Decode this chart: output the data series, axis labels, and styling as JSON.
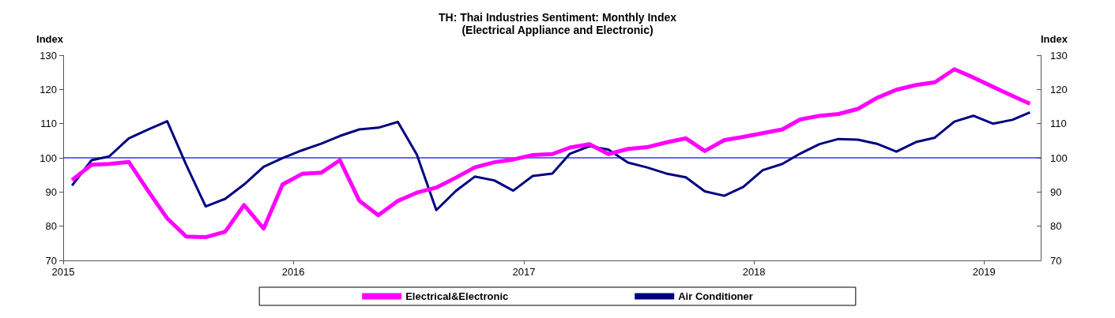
{
  "chart_data": {
    "type": "line",
    "title": "TH: Thai Industries Sentiment: Monthly Index",
    "subtitle": "(Electrical Appliance and Electronic)",
    "ylabel": "Index",
    "y2label": "Index",
    "x": [
      "2015-01-15",
      "2015-02-15",
      "2015-03-15",
      "2015-04-15",
      "2015-05-15",
      "2015-06-15",
      "2015-07-15",
      "2015-08-15",
      "2015-09-15",
      "2015-10-15",
      "2015-11-15",
      "2015-12-15",
      "2016-01-15",
      "2016-02-15",
      "2016-03-15",
      "2016-04-15",
      "2016-05-15",
      "2016-06-15",
      "2016-07-15",
      "2016-08-15",
      "2016-09-15",
      "2016-10-15",
      "2016-11-15",
      "2016-12-15",
      "2017-01-15",
      "2017-02-15",
      "2017-03-15",
      "2017-04-15",
      "2017-05-15",
      "2017-06-15",
      "2017-07-15",
      "2017-08-15",
      "2017-09-15",
      "2017-10-15",
      "2017-11-15",
      "2017-12-15",
      "2018-01-15",
      "2018-02-15",
      "2018-03-15",
      "2018-04-15",
      "2018-05-15",
      "2018-06-15",
      "2018-07-15",
      "2018-08-15",
      "2018-09-15",
      "2018-10-15",
      "2018-11-15",
      "2018-12-15",
      "2019-01-15",
      "2019-02-15",
      "2019-03-15"
    ],
    "series": [
      {
        "name": "Electrical&Electronic",
        "color": "#ff00ff",
        "values": [
          93.5,
          98,
          98.2,
          98.8,
          90.5,
          82.3,
          77,
          76.8,
          78.4,
          86.2,
          79.3,
          92.2,
          95.3,
          95.7,
          99.3,
          87.4,
          83.2,
          87.4,
          89.8,
          91.3,
          94.2,
          97.2,
          98.7,
          99.5,
          100.8,
          101.1,
          103,
          104,
          101.1,
          102.6,
          103.1,
          104.5,
          105.7,
          102,
          105.2,
          106.1,
          107.2,
          108.3,
          111.2,
          112.3,
          112.8,
          114.3,
          117.5,
          119.9,
          121.3,
          122.1,
          125.9,
          123.5,
          120.8,
          118.1,
          115.8
        ]
      },
      {
        "name": "Air Conditioner",
        "color": "#000080",
        "values": [
          91.9,
          99.3,
          100.4,
          105.7,
          108.2,
          110.7,
          98,
          85.8,
          88,
          92.2,
          97.4,
          99.9,
          102.2,
          104.2,
          106.4,
          108.3,
          108.8,
          110.5,
          101,
          84.7,
          90.3,
          94.5,
          93.4,
          90.4,
          94.7,
          95.4,
          101.2,
          103.4,
          102.4,
          98.6,
          97.2,
          95.4,
          94.3,
          90.2,
          88.9,
          91.5,
          96.4,
          98.2,
          101.2,
          104,
          105.5,
          105.3,
          104.1,
          101.8,
          104.6,
          105.9,
          110.6,
          112.3,
          110,
          111.1,
          113.3
        ]
      }
    ],
    "xlim": [
      "2015-01-01",
      "2019-04-01"
    ],
    "xticks": [
      "2015",
      "2016",
      "2017",
      "2018",
      "2019"
    ],
    "ylim": [
      70,
      130
    ],
    "yticks": [
      70,
      80,
      90,
      100,
      110,
      120,
      130
    ],
    "y2lim": [
      70,
      130
    ],
    "y2ticks": [
      70,
      80,
      90,
      100,
      110,
      120,
      130
    ],
    "ref_lines": [
      {
        "axis": "y",
        "value": 100,
        "color": "#3333ff"
      }
    ],
    "legend": "bottom",
    "grid": false,
    "marker": "none",
    "line_style": "solid"
  }
}
